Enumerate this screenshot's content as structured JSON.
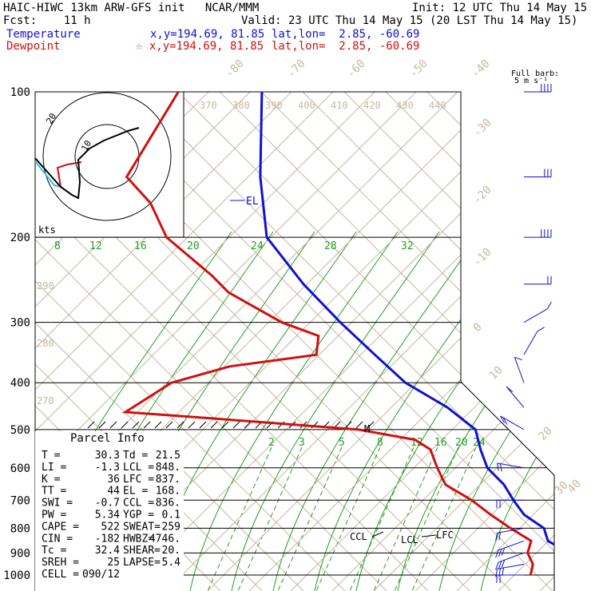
{
  "header": {
    "left_line1": "HAIC-HIWC 13km ARW-GFS init   NCAR/MMM",
    "left_line2": "Fcst:    11 h",
    "init": "Init: 12 UTC Thu 14 May 15",
    "valid": "Valid: 23 UTC Thu 14 May 15 (20 LST Thu 14 May 15)",
    "temp_label": "Temperature",
    "dew_label": "Dewpoint",
    "temp_xy": "x,y=194.69, 81.85",
    "dew_xy": "☆ x,y=194.69, 81.85",
    "temp_latlon": "lat,lon=  2.85, -60.69",
    "dew_latlon": "lat,lon=  2.85, -60.69"
  },
  "barb_title_1": "Full barb:",
  "barb_title_2": "5 m s⁻¹",
  "hodo_label": "kts",
  "hodo_ring_labels": [
    "10",
    "20"
  ],
  "parcel": {
    "title": "Parcel Info",
    "rows": [
      [
        "T   =",
        "30.3",
        "Td =",
        "21.5"
      ],
      [
        "LI  =",
        "-1.3",
        "LCL =",
        "848."
      ],
      [
        "K   =",
        "36",
        "LFC =",
        "837."
      ],
      [
        "TT  =",
        "44",
        "EL  =",
        "168."
      ],
      [
        "SWI =",
        "-0.7",
        "CCL =",
        "836."
      ],
      [
        "PW  =",
        "5.34",
        "YGP =",
        "0.1"
      ],
      [
        "CAPE =",
        "522",
        "SWEAT=",
        "259"
      ],
      [
        "CIN  =",
        "-182",
        "HWBZ=",
        "4746."
      ],
      [
        "Tc  =",
        "32.4",
        "SHEAR=",
        "20."
      ],
      [
        "SREH =",
        "25",
        "LAPSE=",
        "5.4"
      ],
      [
        "CELL =",
        "090/12",
        "",
        ""
      ]
    ]
  },
  "colors": {
    "temperature": "#1010d0",
    "dewpoint": "#d01010",
    "dry_adiabat": "#c8b8a0",
    "moist_adiabat": "#22a022",
    "mixing_ratio": "#22a022"
  },
  "annotations": {
    "el": "EL",
    "ccl": "CCL",
    "lcl": "LCL",
    "lfc": "LFC",
    "m": "M"
  },
  "chart_data": {
    "type": "line",
    "skewt": true,
    "y_axis_pressure_hpa": [
      100,
      200,
      300,
      400,
      500,
      600,
      700,
      800,
      900,
      1000
    ],
    "dry_adiabat_labels": [
      "-80",
      "-70",
      "-60",
      "-50",
      "-40",
      "-30",
      "-20",
      "-10",
      "0",
      "10",
      "20",
      "30",
      "40"
    ],
    "theta_labels": [
      "370",
      "380",
      "390",
      "400",
      "410",
      "420",
      "430",
      "440"
    ],
    "theta_labels_low": [
      "290",
      "280",
      "270"
    ],
    "moist_labels_upper": [
      "8",
      "12",
      "16",
      "20",
      "24",
      "28",
      "32"
    ],
    "mixing_ratio_labels": [
      "2",
      "3",
      "5",
      "8",
      "12",
      "16",
      "20",
      "24"
    ],
    "series": [
      {
        "name": "Temperature",
        "pressure": [
          1000,
          950,
          900,
          850,
          800,
          750,
          700,
          650,
          600,
          550,
          500,
          450,
          400,
          350,
          300,
          250,
          200,
          150,
          100
        ],
        "values": [
          29.5,
          24,
          20,
          16,
          14,
          10,
          7,
          4,
          0,
          -3,
          -6,
          -12,
          -20,
          -27,
          -35,
          -44,
          -54,
          -62,
          -72
        ]
      },
      {
        "name": "Dewpoint",
        "pressure": [
          1000,
          950,
          900,
          850,
          800,
          750,
          700,
          650,
          600,
          550,
          525,
          500,
          470,
          460,
          400,
          370,
          350,
          320,
          300,
          260,
          240,
          200,
          170,
          150,
          100
        ],
        "values": [
          18,
          17,
          15,
          14,
          10,
          6,
          2,
          -3,
          -6,
          -9,
          -12,
          -20,
          -42,
          -50,
          -48,
          -43,
          -34,
          -36,
          -42,
          -52,
          -56,
          -66,
          -72,
          -78,
          -82
        ]
      }
    ],
    "wind_barbs": [
      {
        "p": 1000,
        "dir": 90,
        "spd": 10
      },
      {
        "p": 950,
        "dir": 100,
        "spd": 13
      },
      {
        "p": 900,
        "dir": 110,
        "spd": 15
      },
      {
        "p": 850,
        "dir": 110,
        "spd": 15
      },
      {
        "p": 800,
        "dir": 100,
        "spd": 12
      },
      {
        "p": 700,
        "dir": 90,
        "spd": 10
      },
      {
        "p": 600,
        "dir": 80,
        "spd": 10
      },
      {
        "p": 500,
        "dir": 60,
        "spd": 8
      },
      {
        "p": 450,
        "dir": 40,
        "spd": 6
      },
      {
        "p": 400,
        "dir": 20,
        "spd": 5
      },
      {
        "p": 350,
        "dir": 330,
        "spd": 4
      },
      {
        "p": 300,
        "dir": 300,
        "spd": 5
      },
      {
        "p": 250,
        "dir": 270,
        "spd": 12
      },
      {
        "p": 200,
        "dir": 270,
        "spd": 18
      },
      {
        "p": 150,
        "dir": 270,
        "spd": 15
      },
      {
        "p": 100,
        "dir": 270,
        "spd": 18
      }
    ]
  }
}
